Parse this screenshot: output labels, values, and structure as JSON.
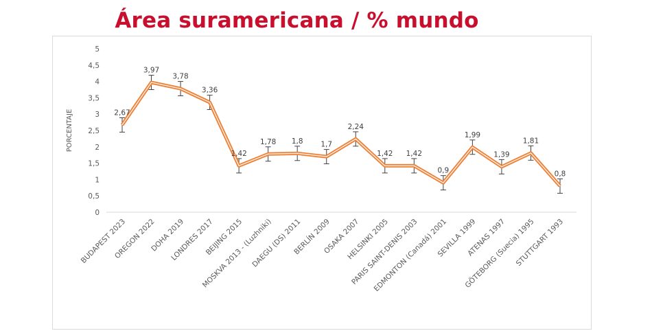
{
  "title": "Área suramericana / % mundo",
  "chart_data": {
    "type": "line",
    "title": "Área suramericana / % mundo",
    "ylabel": "PORCENTAJE",
    "xlabel": "",
    "ylim": [
      0,
      5
    ],
    "yticks": [
      "0",
      "0,5",
      "1",
      "1,5",
      "2",
      "2,5",
      "3",
      "3,5",
      "4",
      "4,5",
      "5"
    ],
    "categories": [
      "BUDAPEST 2023",
      "OREGON 2022",
      "DOHA 2019",
      "LONDRES 2017",
      "BEIJING 2015",
      "MOSKVA 2013 - (Luzhniki)",
      "DAEGU (DS) 2011",
      "BERLÍN 2009",
      "OSAKA 2007",
      "HELSINKI 2005",
      "PARIS SAINT-DENIS 2003",
      "EDMONTON (Canadá) 2001",
      "SEVILLA 1999",
      "ATENAS 1997",
      "GÖTEBORG (Suecia) 1995",
      "STUTTGART 1993"
    ],
    "values": [
      2.67,
      3.97,
      3.78,
      3.36,
      1.42,
      1.78,
      1.8,
      1.7,
      2.24,
      1.42,
      1.42,
      0.9,
      1.99,
      1.39,
      1.81,
      0.8
    ],
    "data_labels": [
      "2,67",
      "3,97",
      "3,78",
      "3,36",
      "1,42",
      "1,78",
      "1,8",
      "1,7",
      "2,24",
      "1,42",
      "1,42",
      "0,9",
      "1,99",
      "1,39",
      "1,81",
      "0,8"
    ],
    "error_bars": 0.22,
    "grid": false,
    "colors": {
      "line_outer": "#ed7d31",
      "line_inner": "#fbe5d6",
      "error_bar": "#404040"
    }
  }
}
